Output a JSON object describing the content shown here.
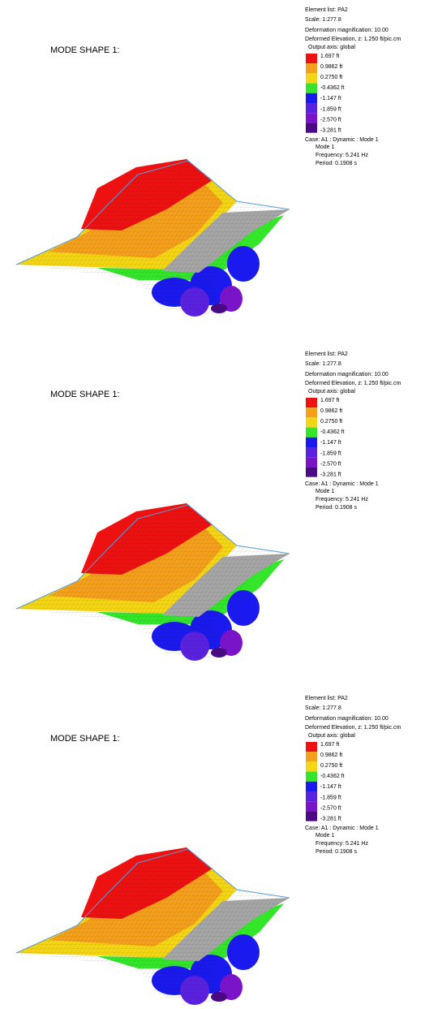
{
  "panels": [
    {
      "title": "MODE SHAPE 1:",
      "info": [
        "Element list: PA2",
        "Scale: 1:277.8",
        "Deformation magnification: 10.00",
        "Deformed Elevation, z: 1.250 ft/pic.cm"
      ],
      "output_axis": "Output axis: global",
      "legend": [
        {
          "label": "1.697 ft",
          "color": "#ee1111"
        },
        {
          "label": "0.9862 ft",
          "color": "#f5a01c"
        },
        {
          "label": "0.2750 ft",
          "color": "#f5d615"
        },
        {
          "label": "-0.4362 ft",
          "color": "#33e62a"
        },
        {
          "label": "-1.147 ft",
          "color": "#1a1aee"
        },
        {
          "label": "-1.859 ft",
          "color": "#5a22e0"
        },
        {
          "label": "-2.570 ft",
          "color": "#7a14c8"
        },
        {
          "label": "-3.281 ft",
          "color": "#4a0a86"
        }
      ],
      "case": "Case: A1 : Dynamic : Mode 1",
      "mode": "Mode 1",
      "frequency": "Frequency: 5.241 Hz",
      "period": "Period: 0.1908 s"
    },
    {
      "title": "MODE SHAPE 1:",
      "info": [
        "Element list: PA2",
        "Scale: 1:277.8",
        "Deformation magnification: 10.00",
        "Deformed Elevation, z: 1.250 ft/pic.cm"
      ],
      "output_axis": "Output axis: global",
      "legend": [
        {
          "label": "1.697 ft",
          "color": "#ee1111"
        },
        {
          "label": "0.9862 ft",
          "color": "#f5a01c"
        },
        {
          "label": "0.2750 ft",
          "color": "#f5d615"
        },
        {
          "label": "-0.4362 ft",
          "color": "#33e62a"
        },
        {
          "label": "-1.147 ft",
          "color": "#1a1aee"
        },
        {
          "label": "-1.859 ft",
          "color": "#5a22e0"
        },
        {
          "label": "-2.570 ft",
          "color": "#7a14c8"
        },
        {
          "label": "-3.281 ft",
          "color": "#4a0a86"
        }
      ],
      "case": "Case: A1 : Dynamic : Mode 1",
      "mode": "Mode 1",
      "frequency": "Frequency: 5.241 Hz",
      "period": "Period: 0.1908 s"
    },
    {
      "title": "MODE SHAPE 1:",
      "info": [
        "Element list: PA2",
        "Scale: 1:277.8",
        "Deformation magnification: 10.00",
        "Deformed Elevation, z: 1.250 ft/pic.cm"
      ],
      "output_axis": "Output axis: global",
      "legend": [
        {
          "label": "1.697 ft",
          "color": "#ee1111"
        },
        {
          "label": "0.9862 ft",
          "color": "#f5a01c"
        },
        {
          "label": "0.2750 ft",
          "color": "#f5d615"
        },
        {
          "label": "-0.4362 ft",
          "color": "#33e62a"
        },
        {
          "label": "-1.147 ft",
          "color": "#1a1aee"
        },
        {
          "label": "-1.859 ft",
          "color": "#5a22e0"
        },
        {
          "label": "-2.570 ft",
          "color": "#7a14c8"
        },
        {
          "label": "-3.281 ft",
          "color": "#4a0a86"
        }
      ],
      "case": "Case: A1 : Dynamic : Mode 1",
      "mode": "Mode 1",
      "frequency": "Frequency: 5.241 Hz",
      "period": "Period: 0.1908 s"
    }
  ]
}
